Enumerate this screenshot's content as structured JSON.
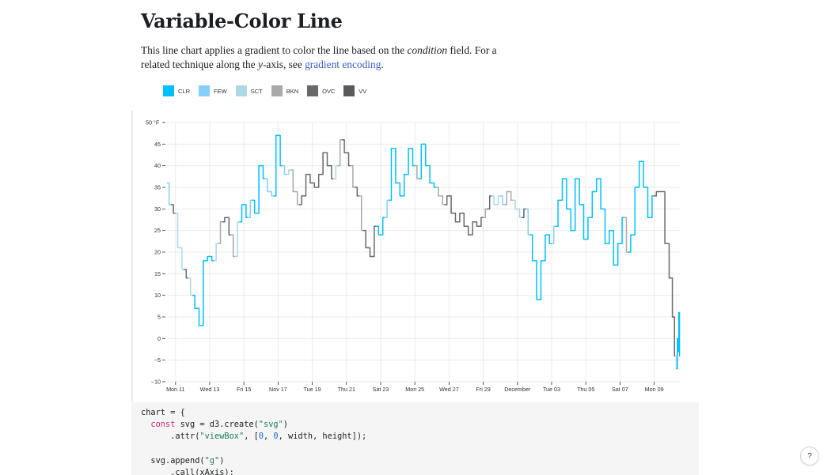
{
  "page": {
    "title": "Variable-Color Line",
    "desc_part1": "This line chart applies a gradient to color the line based on the ",
    "desc_em1": "condition",
    "desc_part2": " field. For a related technique along the ",
    "desc_em2": "y",
    "desc_part3": "-axis, see ",
    "desc_link": "gradient encoding",
    "desc_part4": "."
  },
  "code": {
    "line1a": "chart = {",
    "line2kw": "const",
    "line2a": " svg = d3.create(",
    "line2s": "\"svg\"",
    "line2b": ")",
    "line3a": "      .attr(",
    "line3s": "\"viewBox\"",
    "line3b": ", [",
    "line3n1": "0",
    "line3c": ", ",
    "line3n2": "0",
    "line3d": ", width, height]);",
    "line5a": "  svg.append(",
    "line5s": "\"g\"",
    "line5b": ")",
    "line6a": "      .call(xAxis);"
  },
  "help": {
    "label": "?"
  },
  "chart_data": {
    "type": "line",
    "ylabel": "°F",
    "ylim": [
      -10,
      50
    ],
    "yticks": [
      -10,
      -5,
      0,
      5,
      10,
      15,
      20,
      25,
      30,
      35,
      40,
      45,
      50
    ],
    "xlim": [
      "2019-11-10T12:00",
      "2019-12-10T12:00"
    ],
    "xticks": [
      {
        "date": "2019-11-11",
        "label": "Mon 11"
      },
      {
        "date": "2019-11-13",
        "label": "Wed 13"
      },
      {
        "date": "2019-11-15",
        "label": "Fri 15"
      },
      {
        "date": "2019-11-17",
        "label": "Nov 17"
      },
      {
        "date": "2019-11-19",
        "label": "Tue 19"
      },
      {
        "date": "2019-11-21",
        "label": "Thu 21"
      },
      {
        "date": "2019-11-23",
        "label": "Sat 23"
      },
      {
        "date": "2019-11-25",
        "label": "Mon 25"
      },
      {
        "date": "2019-11-27",
        "label": "Wed 27"
      },
      {
        "date": "2019-11-29",
        "label": "Fri 29"
      },
      {
        "date": "2019-12-01",
        "label": "December"
      },
      {
        "date": "2019-12-03",
        "label": "Tue 03"
      },
      {
        "date": "2019-12-05",
        "label": "Thu 05"
      },
      {
        "date": "2019-12-07",
        "label": "Sat 07"
      },
      {
        "date": "2019-12-09",
        "label": "Mon 09"
      }
    ],
    "conditions": [
      {
        "code": "CLR",
        "color": "#00bfff"
      },
      {
        "code": "FEW",
        "color": "#87cefa"
      },
      {
        "code": "SCT",
        "color": "#add8e6"
      },
      {
        "code": "BKN",
        "color": "#a9a9a9"
      },
      {
        "code": "OVC",
        "color": "#696969"
      },
      {
        "code": "VV",
        "color": "#5a5a5a"
      }
    ],
    "grid": true,
    "series": [
      {
        "date": "2019-11-10T12:00",
        "value": 36,
        "condition": "FEW"
      },
      {
        "date": "2019-11-10T18:00",
        "value": 31,
        "condition": "OVC"
      },
      {
        "date": "2019-11-11T00:00",
        "value": 29,
        "condition": "SCT"
      },
      {
        "date": "2019-11-11T06:00",
        "value": 21,
        "condition": "SCT"
      },
      {
        "date": "2019-11-11T12:00",
        "value": 16,
        "condition": "OVC"
      },
      {
        "date": "2019-11-11T18:00",
        "value": 14,
        "condition": "SCT"
      },
      {
        "date": "2019-11-12T00:00",
        "value": 10,
        "condition": "CLR"
      },
      {
        "date": "2019-11-12T06:00",
        "value": 7,
        "condition": "CLR"
      },
      {
        "date": "2019-11-12T12:00",
        "value": 3,
        "condition": "CLR"
      },
      {
        "date": "2019-11-12T18:00",
        "value": 18,
        "condition": "CLR"
      },
      {
        "date": "2019-11-13T00:00",
        "value": 19,
        "condition": "CLR"
      },
      {
        "date": "2019-11-13T06:00",
        "value": 18,
        "condition": "SCT"
      },
      {
        "date": "2019-11-13T12:00",
        "value": 22,
        "condition": "BKN"
      },
      {
        "date": "2019-11-13T18:00",
        "value": 27,
        "condition": "OVC"
      },
      {
        "date": "2019-11-14T00:00",
        "value": 28,
        "condition": "OVC"
      },
      {
        "date": "2019-11-14T06:00",
        "value": 24,
        "condition": "BKN"
      },
      {
        "date": "2019-11-14T12:00",
        "value": 19,
        "condition": "SCT"
      },
      {
        "date": "2019-11-14T18:00",
        "value": 27,
        "condition": "CLR"
      },
      {
        "date": "2019-11-15T00:00",
        "value": 31,
        "condition": "CLR"
      },
      {
        "date": "2019-11-15T06:00",
        "value": 28,
        "condition": "FEW"
      },
      {
        "date": "2019-11-15T12:00",
        "value": 32,
        "condition": "CLR"
      },
      {
        "date": "2019-11-15T18:00",
        "value": 29,
        "condition": "CLR"
      },
      {
        "date": "2019-11-16T00:00",
        "value": 40,
        "condition": "CLR"
      },
      {
        "date": "2019-11-16T06:00",
        "value": 37,
        "condition": "FEW"
      },
      {
        "date": "2019-11-16T12:00",
        "value": 34,
        "condition": "FEW"
      },
      {
        "date": "2019-11-16T18:00",
        "value": 33,
        "condition": "CLR"
      },
      {
        "date": "2019-11-17T00:00",
        "value": 47,
        "condition": "CLR"
      },
      {
        "date": "2019-11-17T06:00",
        "value": 40,
        "condition": "FEW"
      },
      {
        "date": "2019-11-17T12:00",
        "value": 38,
        "condition": "SCT"
      },
      {
        "date": "2019-11-17T18:00",
        "value": 39,
        "condition": "BKN"
      },
      {
        "date": "2019-11-18T00:00",
        "value": 34,
        "condition": "BKN"
      },
      {
        "date": "2019-11-18T06:00",
        "value": 31,
        "condition": "OVC"
      },
      {
        "date": "2019-11-18T12:00",
        "value": 33,
        "condition": "OVC"
      },
      {
        "date": "2019-11-18T18:00",
        "value": 38,
        "condition": "OVC"
      },
      {
        "date": "2019-11-19T00:00",
        "value": 36,
        "condition": "OVC"
      },
      {
        "date": "2019-11-19T06:00",
        "value": 35,
        "condition": "OVC"
      },
      {
        "date": "2019-11-19T12:00",
        "value": 38,
        "condition": "OVC"
      },
      {
        "date": "2019-11-19T18:00",
        "value": 43,
        "condition": "OVC"
      },
      {
        "date": "2019-11-20T00:00",
        "value": 40,
        "condition": "OVC"
      },
      {
        "date": "2019-11-20T06:00",
        "value": 37,
        "condition": "SCT"
      },
      {
        "date": "2019-11-20T12:00",
        "value": 40,
        "condition": "BKN"
      },
      {
        "date": "2019-11-20T18:00",
        "value": 46,
        "condition": "OVC"
      },
      {
        "date": "2019-11-21T00:00",
        "value": 43,
        "condition": "OVC"
      },
      {
        "date": "2019-11-21T06:00",
        "value": 40,
        "condition": "BKN"
      },
      {
        "date": "2019-11-21T12:00",
        "value": 35,
        "condition": "OVC"
      },
      {
        "date": "2019-11-21T18:00",
        "value": 33,
        "condition": "BKN"
      },
      {
        "date": "2019-11-22T00:00",
        "value": 25,
        "condition": "OVC"
      },
      {
        "date": "2019-11-22T06:00",
        "value": 21,
        "condition": "OVC"
      },
      {
        "date": "2019-11-22T12:00",
        "value": 19,
        "condition": "OVC"
      },
      {
        "date": "2019-11-22T18:00",
        "value": 26,
        "condition": "CLR"
      },
      {
        "date": "2019-11-23T00:00",
        "value": 24,
        "condition": "CLR"
      },
      {
        "date": "2019-11-23T06:00",
        "value": 28,
        "condition": "FEW"
      },
      {
        "date": "2019-11-23T12:00",
        "value": 32,
        "condition": "CLR"
      },
      {
        "date": "2019-11-23T18:00",
        "value": 44,
        "condition": "CLR"
      },
      {
        "date": "2019-11-24T00:00",
        "value": 36,
        "condition": "CLR"
      },
      {
        "date": "2019-11-24T06:00",
        "value": 33,
        "condition": "CLR"
      },
      {
        "date": "2019-11-24T12:00",
        "value": 38,
        "condition": "CLR"
      },
      {
        "date": "2019-11-24T18:00",
        "value": 44,
        "condition": "CLR"
      },
      {
        "date": "2019-11-25T00:00",
        "value": 40,
        "condition": "BKN"
      },
      {
        "date": "2019-11-25T06:00",
        "value": 37,
        "condition": "CLR"
      },
      {
        "date": "2019-11-25T12:00",
        "value": 45,
        "condition": "CLR"
      },
      {
        "date": "2019-11-25T18:00",
        "value": 40,
        "condition": "CLR"
      },
      {
        "date": "2019-11-26T00:00",
        "value": 36,
        "condition": "CLR"
      },
      {
        "date": "2019-11-26T06:00",
        "value": 35,
        "condition": "BKN"
      },
      {
        "date": "2019-11-26T12:00",
        "value": 33,
        "condition": "BKN"
      },
      {
        "date": "2019-11-26T18:00",
        "value": 31,
        "condition": "OVC"
      },
      {
        "date": "2019-11-27T00:00",
        "value": 33,
        "condition": "OVC"
      },
      {
        "date": "2019-11-27T06:00",
        "value": 29,
        "condition": "OVC"
      },
      {
        "date": "2019-11-27T12:00",
        "value": 27,
        "condition": "OVC"
      },
      {
        "date": "2019-11-27T18:00",
        "value": 29,
        "condition": "OVC"
      },
      {
        "date": "2019-11-28T00:00",
        "value": 26,
        "condition": "OVC"
      },
      {
        "date": "2019-11-28T06:00",
        "value": 24,
        "condition": "OVC"
      },
      {
        "date": "2019-11-28T12:00",
        "value": 27,
        "condition": "OVC"
      },
      {
        "date": "2019-11-28T18:00",
        "value": 26,
        "condition": "OVC"
      },
      {
        "date": "2019-11-29T00:00",
        "value": 28,
        "condition": "BKN"
      },
      {
        "date": "2019-11-29T06:00",
        "value": 30,
        "condition": "OVC"
      },
      {
        "date": "2019-11-29T12:00",
        "value": 33,
        "condition": "SCT"
      },
      {
        "date": "2019-11-29T18:00",
        "value": 31,
        "condition": "SCT"
      },
      {
        "date": "2019-11-30T00:00",
        "value": 33,
        "condition": "FEW"
      },
      {
        "date": "2019-11-30T06:00",
        "value": 31,
        "condition": "BKN"
      },
      {
        "date": "2019-11-30T12:00",
        "value": 34,
        "condition": "BKN"
      },
      {
        "date": "2019-11-30T18:00",
        "value": 32,
        "condition": "SCT"
      },
      {
        "date": "2019-12-01T00:00",
        "value": 30,
        "condition": "SCT"
      },
      {
        "date": "2019-12-01T06:00",
        "value": 28,
        "condition": "OVC"
      },
      {
        "date": "2019-12-01T12:00",
        "value": 30,
        "condition": "FEW"
      },
      {
        "date": "2019-12-01T18:00",
        "value": 24,
        "condition": "CLR"
      },
      {
        "date": "2019-12-02T00:00",
        "value": 18,
        "condition": "CLR"
      },
      {
        "date": "2019-12-02T06:00",
        "value": 9,
        "condition": "CLR"
      },
      {
        "date": "2019-12-02T12:00",
        "value": 18,
        "condition": "CLR"
      },
      {
        "date": "2019-12-02T18:00",
        "value": 24,
        "condition": "CLR"
      },
      {
        "date": "2019-12-03T00:00",
        "value": 22,
        "condition": "FEW"
      },
      {
        "date": "2019-12-03T06:00",
        "value": 26,
        "condition": "CLR"
      },
      {
        "date": "2019-12-03T12:00",
        "value": 32,
        "condition": "CLR"
      },
      {
        "date": "2019-12-03T18:00",
        "value": 37,
        "condition": "CLR"
      },
      {
        "date": "2019-12-04T00:00",
        "value": 30,
        "condition": "CLR"
      },
      {
        "date": "2019-12-04T06:00",
        "value": 25,
        "condition": "CLR"
      },
      {
        "date": "2019-12-04T12:00",
        "value": 37,
        "condition": "CLR"
      },
      {
        "date": "2019-12-04T18:00",
        "value": 31,
        "condition": "CLR"
      },
      {
        "date": "2019-12-05T00:00",
        "value": 23,
        "condition": "CLR"
      },
      {
        "date": "2019-12-05T06:00",
        "value": 28,
        "condition": "CLR"
      },
      {
        "date": "2019-12-05T12:00",
        "value": 34,
        "condition": "CLR"
      },
      {
        "date": "2019-12-05T18:00",
        "value": 37,
        "condition": "CLR"
      },
      {
        "date": "2019-12-06T00:00",
        "value": 30,
        "condition": "CLR"
      },
      {
        "date": "2019-12-06T06:00",
        "value": 22,
        "condition": "CLR"
      },
      {
        "date": "2019-12-06T12:00",
        "value": 25,
        "condition": "CLR"
      },
      {
        "date": "2019-12-06T18:00",
        "value": 17,
        "condition": "CLR"
      },
      {
        "date": "2019-12-07T00:00",
        "value": 22,
        "condition": "CLR"
      },
      {
        "date": "2019-12-07T06:00",
        "value": 28,
        "condition": "BKN"
      },
      {
        "date": "2019-12-07T12:00",
        "value": 20,
        "condition": "CLR"
      },
      {
        "date": "2019-12-07T18:00",
        "value": 24,
        "condition": "CLR"
      },
      {
        "date": "2019-12-08T00:00",
        "value": 35,
        "condition": "CLR"
      },
      {
        "date": "2019-12-08T06:00",
        "value": 41,
        "condition": "CLR"
      },
      {
        "date": "2019-12-08T12:00",
        "value": 35,
        "condition": "CLR"
      },
      {
        "date": "2019-12-08T18:00",
        "value": 28,
        "condition": "CLR"
      },
      {
        "date": "2019-12-09T00:00",
        "value": 33,
        "condition": "OVC"
      },
      {
        "date": "2019-12-09T06:00",
        "value": 34,
        "condition": "OVC"
      },
      {
        "date": "2019-12-09T12:00",
        "value": 34,
        "condition": "OVC"
      },
      {
        "date": "2019-12-09T18:00",
        "value": 22,
        "condition": "OVC"
      },
      {
        "date": "2019-12-10T00:00",
        "value": 14,
        "condition": "OVC"
      },
      {
        "date": "2019-12-10T03:00",
        "value": 5,
        "condition": "OVC"
      },
      {
        "date": "2019-12-10T06:00",
        "value": -4,
        "condition": "SCT"
      },
      {
        "date": "2019-12-10T08:00",
        "value": -7,
        "condition": "CLR"
      },
      {
        "date": "2019-12-10T09:00",
        "value": 0,
        "condition": "CLR"
      },
      {
        "date": "2019-12-10T10:00",
        "value": -3,
        "condition": "CLR"
      },
      {
        "date": "2019-12-10T11:00",
        "value": 6,
        "condition": "CLR"
      },
      {
        "date": "2019-12-10T12:00",
        "value": -4,
        "condition": "CLR"
      }
    ]
  }
}
